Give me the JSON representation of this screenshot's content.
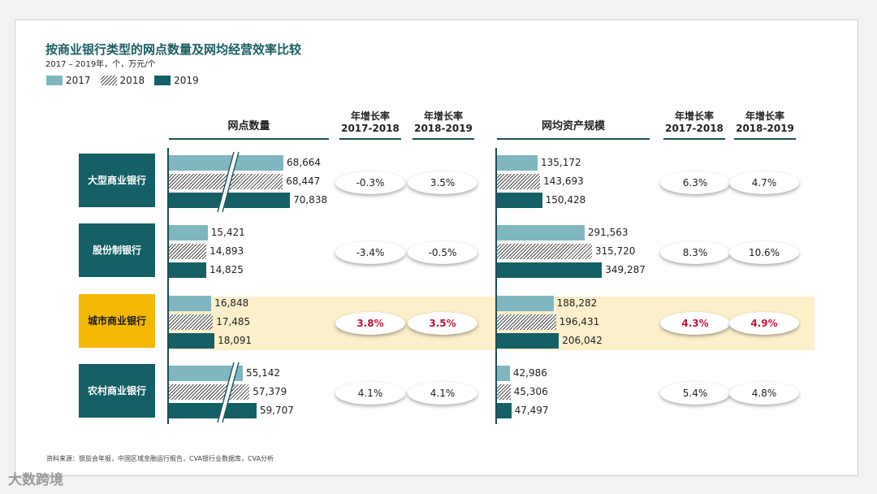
{
  "title": "按商业银行类型的网点数量及网均经营效率比较",
  "subtitle": "2017 – 2019年，个，万元/个",
  "legend": [
    "2017",
    "2018",
    "2019"
  ],
  "colors": {
    "y2017": "#7fb6c0",
    "y2018_pattern": "#4c4c4c",
    "y2019": "#155f66",
    "highlight": "#f5b800",
    "highlight_band": "#fcefc9",
    "growth_highlight": "#c0143c"
  },
  "headers": {
    "left": "网点数量",
    "right": "网均资产规模",
    "growth_label": "年增长率",
    "p1": "2017-2018",
    "p2": "2018-2019"
  },
  "source": "资料来源：银监会年报，中国区域金融运行报告，CVA银行业数据库，CVA分析",
  "watermark": "大数跨境",
  "chart_data": {
    "type": "bar",
    "orientation": "horizontal",
    "series_names": [
      "2017",
      "2018",
      "2019"
    ],
    "categories": [
      {
        "label": [
          "大型商业",
          "银行"
        ],
        "highlight": false,
        "broken_axis": true,
        "branches": {
          "values": [
            68664,
            68447,
            70838
          ],
          "labels": [
            "68,664",
            "68,447",
            "70,838"
          ]
        },
        "branch_growth": [
          "-0.3%",
          "3.5%"
        ],
        "assets": {
          "values": [
            135172,
            143693,
            150428
          ],
          "labels": [
            "135,172",
            "143,693",
            "150,428"
          ]
        },
        "asset_growth": [
          "6.3%",
          "4.7%"
        ]
      },
      {
        "label": [
          "股份制",
          "银行"
        ],
        "highlight": false,
        "broken_axis": false,
        "branches": {
          "values": [
            15421,
            14893,
            14825
          ],
          "labels": [
            "15,421",
            "14,893",
            "14,825"
          ]
        },
        "branch_growth": [
          "-3.4%",
          "-0.5%"
        ],
        "assets": {
          "values": [
            291563,
            315720,
            349287
          ],
          "labels": [
            "291,563",
            "315,720",
            "349,287"
          ]
        },
        "asset_growth": [
          "8.3%",
          "10.6%"
        ]
      },
      {
        "label": [
          "城市商业",
          "银行"
        ],
        "highlight": true,
        "broken_axis": false,
        "branches": {
          "values": [
            16848,
            17485,
            18091
          ],
          "labels": [
            "16,848",
            "17,485",
            "18,091"
          ]
        },
        "branch_growth": [
          "3.8%",
          "3.5%"
        ],
        "assets": {
          "values": [
            188282,
            196431,
            206042
          ],
          "labels": [
            "188,282",
            "196,431",
            "206,042"
          ]
        },
        "asset_growth": [
          "4.3%",
          "4.9%"
        ]
      },
      {
        "label": [
          "农村商业",
          "银行"
        ],
        "highlight": false,
        "broken_axis": true,
        "branches": {
          "values": [
            55142,
            57379,
            59707
          ],
          "labels": [
            "55,142",
            "57,379",
            "59,707"
          ]
        },
        "branch_growth": [
          "4.1%",
          "4.1%"
        ],
        "assets": {
          "values": [
            42986,
            45306,
            47497
          ],
          "labels": [
            "42,986",
            "45,306",
            "47,497"
          ]
        },
        "asset_growth": [
          "5.4%",
          "4.8%"
        ]
      }
    ]
  }
}
